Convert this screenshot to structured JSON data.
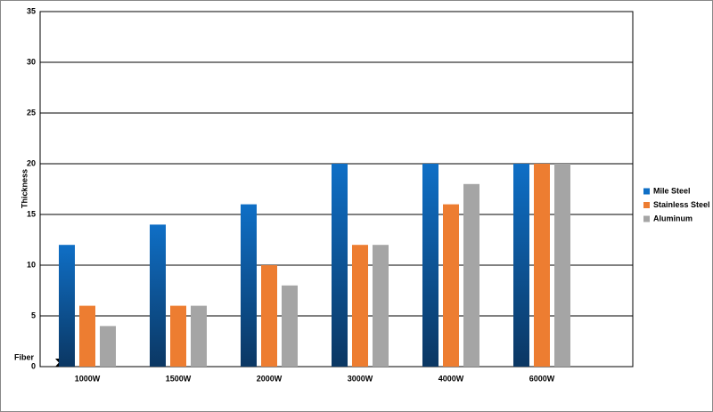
{
  "chart_data": {
    "type": "bar",
    "y_label": "Thickness",
    "annotation": "Fiber",
    "categories": [
      "1000W",
      "1500W",
      "2000W",
      "3000W",
      "4000W",
      "6000W"
    ],
    "series": [
      {
        "name": "Mile Steel",
        "color": "#0f6fc6",
        "values": [
          12,
          14,
          16,
          20,
          20,
          20
        ]
      },
      {
        "name": "Stainless Steel",
        "color": "#ed7d31",
        "values": [
          6,
          6,
          10,
          12,
          16,
          20
        ]
      },
      {
        "name": "Aluminum",
        "color": "#a5a5a5",
        "values": [
          4,
          6,
          8,
          12,
          18,
          20
        ]
      }
    ],
    "ylim": [
      0,
      35
    ],
    "yticks": [
      0,
      5,
      10,
      15,
      20,
      25,
      30,
      35
    ],
    "grid": true,
    "legend": "right"
  }
}
